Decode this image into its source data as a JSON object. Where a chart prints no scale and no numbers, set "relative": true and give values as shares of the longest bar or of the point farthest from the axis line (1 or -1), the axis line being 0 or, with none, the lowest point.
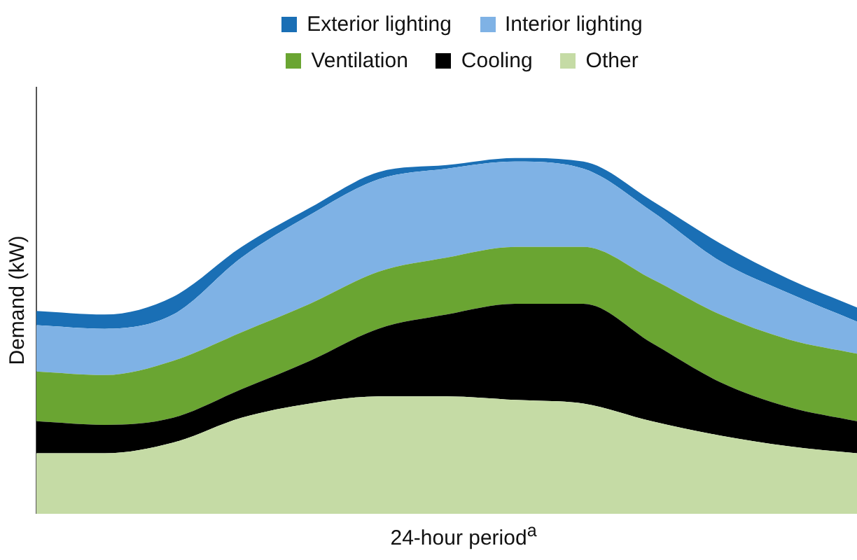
{
  "chart_data": {
    "type": "area",
    "stacked": true,
    "relative": true,
    "xlabel": "24-hour period$^{a}$",
    "ylabel": "Demand (kW)",
    "legend": "top",
    "grid": false,
    "categories": [
      null,
      null,
      null,
      null,
      null,
      null,
      null,
      null,
      null,
      null,
      null,
      null,
      null
    ],
    "series": [
      {
        "name": "Other",
        "color": "#c5dba5",
        "values": [
          0.17,
          0.17,
          0.2,
          0.27,
          0.31,
          0.33,
          0.33,
          0.32,
          0.31,
          0.26,
          0.22,
          0.19,
          0.17
        ]
      },
      {
        "name": "Cooling",
        "color": "#000000",
        "values": [
          0.09,
          0.08,
          0.07,
          0.08,
          0.12,
          0.19,
          0.23,
          0.27,
          0.28,
          0.22,
          0.15,
          0.11,
          0.09
        ]
      },
      {
        "name": "Ventilation",
        "color": "#6aa532",
        "values": [
          0.14,
          0.14,
          0.16,
          0.16,
          0.16,
          0.16,
          0.16,
          0.16,
          0.16,
          0.18,
          0.19,
          0.19,
          0.19
        ]
      },
      {
        "name": "Interior lighting",
        "color": "#7fb2e5",
        "values": [
          0.13,
          0.13,
          0.13,
          0.21,
          0.25,
          0.26,
          0.25,
          0.24,
          0.22,
          0.19,
          0.15,
          0.13,
          0.09
        ]
      },
      {
        "name": "Exterior lighting",
        "color": "#1a6fb5",
        "values": [
          0.04,
          0.04,
          0.05,
          0.03,
          0.02,
          0.02,
          0.01,
          0.01,
          0.02,
          0.03,
          0.05,
          0.04,
          0.04
        ]
      }
    ]
  }
}
